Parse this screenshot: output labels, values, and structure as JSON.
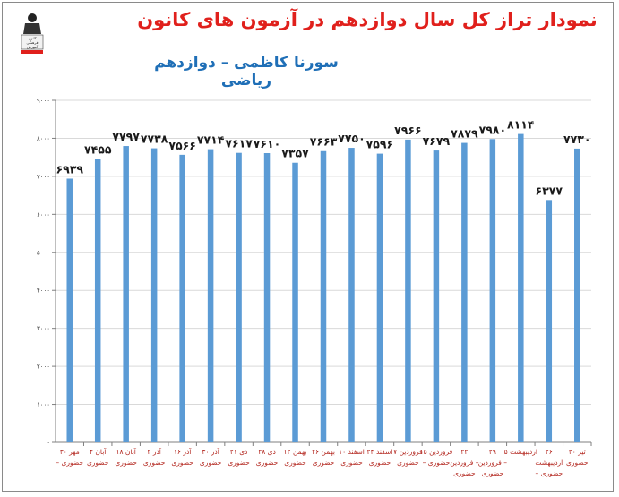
{
  "header": {
    "title": "نمودار تراز کل سال دوازدهم در آزمون های کانون",
    "subtitle": "سورنا کاظمی – دوازدهم ریاضی",
    "logo_text": [
      "کانون",
      "فرهنگی",
      "آموزش"
    ]
  },
  "colors": {
    "bar": "#5b9bd5",
    "title": "#e0201c",
    "subtitle": "#1f6fb7",
    "category_label": "#b3261e",
    "gridline": "#d9d9d9"
  },
  "chart_data": {
    "type": "bar",
    "title": "نمودار تراز کل سال دوازدهم در آزمون های کانون",
    "subtitle": "سورنا کاظمی – دوازدهم ریاضی",
    "xlabel": "",
    "ylabel": "",
    "ylim": [
      0,
      9000
    ],
    "yticks": [
      0,
      1000,
      2000,
      3000,
      4000,
      5000,
      6000,
      7000,
      8000,
      9000
    ],
    "ytick_labels": [
      "۰",
      "۱۰۰۰",
      "۲۰۰۰",
      "۳۰۰۰",
      "۴۰۰۰",
      "۵۰۰۰",
      "۶۰۰۰",
      "۷۰۰۰",
      "۸۰۰۰",
      "۹۰۰۰"
    ],
    "grid": true,
    "legend": "none",
    "categories": [
      [
        "۳۰ مهر",
        "– حضوری"
      ],
      [
        "۴ آبان",
        "حضوری"
      ],
      [
        "۱۸ آبان",
        "حضوری"
      ],
      [
        "۲ آذر",
        "حضوری"
      ],
      [
        "۱۶ آذر",
        "حضوری"
      ],
      [
        "۳۰ آذر",
        "حضوری"
      ],
      [
        "۲۱ دی",
        "حضوری"
      ],
      [
        "۲۸ دی",
        "حضوری"
      ],
      [
        "۱۲ بهمن",
        "حضوری"
      ],
      [
        "۲۶ بهمن",
        "حضوری"
      ],
      [
        "۱۰ اسفند",
        "حضوری"
      ],
      [
        "۲۴ اسفند",
        "حضوری"
      ],
      [
        "۷ فروردین",
        "حضوری"
      ],
      [
        "۱۵ فروردین",
        "– حضوری"
      ],
      [
        "۲۲",
        "فروردین –",
        "حضوری"
      ],
      [
        "۲۹",
        "فروردین –",
        "حضوری"
      ],
      [
        "۵ اردیبهشت"
      ],
      [
        "۲۶",
        "اردیبهشت",
        "– حضوری"
      ],
      [
        "۲۰ تیر",
        "حضوری"
      ]
    ],
    "values": [
      6939,
      7455,
      7797,
      7738,
      7566,
      7714,
      7617,
      7610,
      7357,
      7663,
      7750,
      7596,
      7966,
      7679,
      7879,
      7980,
      8114,
      6377,
      7730
    ],
    "value_labels": [
      "۶۹۳۹",
      "۷۴۵۵",
      "۷۷۹۷",
      "۷۷۳۸",
      "۷۵۶۶",
      "۷۷۱۴",
      "۷۶۱۷",
      "۷۶۱۰",
      "۷۳۵۷",
      "۷۶۶۳",
      "۷۷۵۰",
      "۷۵۹۶",
      "۷۹۶۶",
      "۷۶۷۹",
      "۷۸۷۹",
      "۷۹۸۰",
      "۸۱۱۴",
      "۶۳۷۷",
      "۷۷۳۰"
    ]
  }
}
